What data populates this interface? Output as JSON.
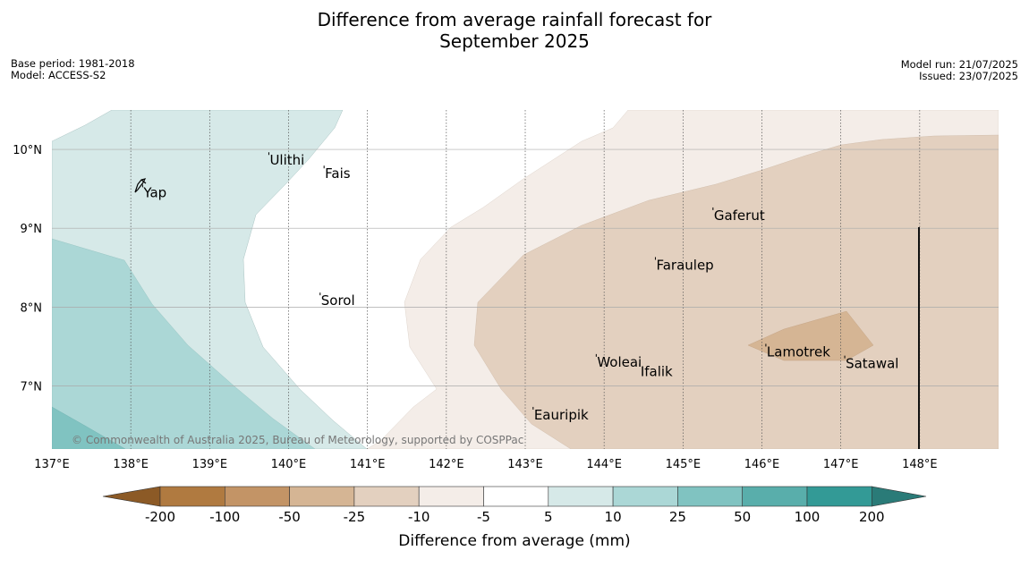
{
  "title_line1": "Difference from average rainfall forecast for",
  "title_line2": "September 2025",
  "meta_left": [
    "Base period: 1981-2018",
    "Model: ACCESS-S2"
  ],
  "meta_right": [
    "Model run: 21/07/2025",
    "Issued: 23/07/2025"
  ],
  "copyright": "© Commonwealth of Australia 2025, Bureau of Meteorology, supported by COSPPac",
  "map": {
    "lon_range": [
      137,
      149
    ],
    "lat_range": [
      6.2,
      10.5
    ],
    "lon_ticks": [
      {
        "value": 137,
        "label": "137°E"
      },
      {
        "value": 138,
        "label": "138°E"
      },
      {
        "value": 139,
        "label": "139°E"
      },
      {
        "value": 140,
        "label": "140°E"
      },
      {
        "value": 141,
        "label": "141°E"
      },
      {
        "value": 142,
        "label": "142°E"
      },
      {
        "value": 143,
        "label": "143°E"
      },
      {
        "value": 144,
        "label": "144°E"
      },
      {
        "value": 145,
        "label": "145°E"
      },
      {
        "value": 146,
        "label": "146°E"
      },
      {
        "value": 147,
        "label": "147°E"
      },
      {
        "value": 148,
        "label": "148°E"
      }
    ],
    "lat_ticks": [
      {
        "value": 10,
        "label": "10°N"
      },
      {
        "value": 9,
        "label": "9°N"
      },
      {
        "value": 8,
        "label": "8°N"
      },
      {
        "value": 7,
        "label": "7°N"
      }
    ],
    "places": [
      {
        "name": "Ulithi",
        "lon": 139.75,
        "lat": 9.93
      },
      {
        "name": "Fais",
        "lon": 140.45,
        "lat": 9.76
      },
      {
        "name": "Yap",
        "lon": 138.15,
        "lat": 9.52
      },
      {
        "name": "Gaferut",
        "lon": 145.38,
        "lat": 9.23
      },
      {
        "name": "Faraulep",
        "lon": 144.65,
        "lat": 8.6
      },
      {
        "name": "Sorol",
        "lon": 140.4,
        "lat": 8.15
      },
      {
        "name": "Lamotrek",
        "lon": 146.05,
        "lat": 7.5
      },
      {
        "name": "Woleai",
        "lon": 143.9,
        "lat": 7.37
      },
      {
        "name": "Ifalik",
        "lon": 144.45,
        "lat": 7.25
      },
      {
        "name": "Satawal",
        "lon": 147.05,
        "lat": 7.35
      },
      {
        "name": "Eauripik",
        "lon": 143.1,
        "lat": 6.7
      }
    ]
  },
  "colorbar": {
    "ticks": [
      "-200",
      "-100",
      "-50",
      "-25",
      "-10",
      "-5",
      "5",
      "10",
      "25",
      "50",
      "100",
      "200"
    ],
    "colors": [
      "#8c5a26",
      "#b07a40",
      "#c39466",
      "#d5b594",
      "#e3d0bf",
      "#f4ede8",
      "#ffffff",
      "#d6e9e8",
      "#abd7d6",
      "#80c3c1",
      "#59aeab",
      "#339a96",
      "#2a7b78"
    ],
    "label": "Difference from average (mm)"
  },
  "fills": {
    "teal_light": "#d6e9e8",
    "teal_mid": "#abd7d6",
    "teal_dark": "#80c3c1",
    "brown_faint": "#f4ede8",
    "brown_light": "#e3d0bf",
    "brown_mid": "#d5b594"
  }
}
